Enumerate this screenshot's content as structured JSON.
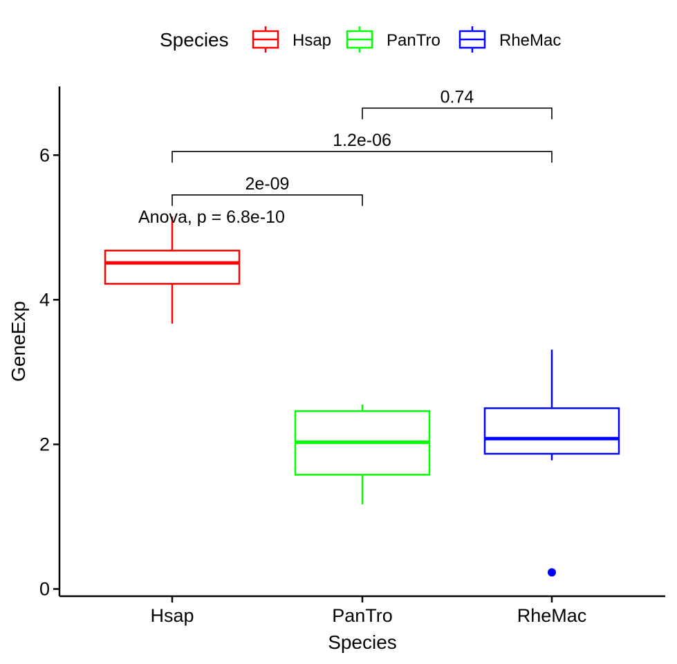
{
  "chart_data": {
    "type": "box",
    "xlabel": "Species",
    "ylabel": "GeneExp",
    "ylim": [
      -0.1,
      6.95
    ],
    "yticks": [
      0,
      2,
      4,
      6
    ],
    "categories": [
      "Hsap",
      "PanTro",
      "RheMac"
    ],
    "legend": {
      "title": "Species",
      "placement": "top",
      "entries": [
        "Hsap",
        "PanTro",
        "RheMac"
      ]
    },
    "series": [
      {
        "name": "Hsap",
        "color": "#ff0000",
        "whisker_low": 3.67,
        "q1": 4.22,
        "median": 4.51,
        "q3": 4.68,
        "whisker_high": 5.15,
        "outliers": []
      },
      {
        "name": "PanTro",
        "color": "#00ff00",
        "whisker_low": 1.17,
        "q1": 1.58,
        "median": 2.03,
        "q3": 2.46,
        "whisker_high": 2.55,
        "outliers": []
      },
      {
        "name": "RheMac",
        "color": "#0000ff",
        "whisker_low": 1.78,
        "q1": 1.87,
        "median": 2.08,
        "q3": 2.5,
        "whisker_high": 3.31,
        "outliers": [
          0.23
        ]
      }
    ],
    "comparisons": [
      {
        "groups": [
          "Hsap",
          "PanTro"
        ],
        "y": 5.45,
        "label": "2e-09"
      },
      {
        "groups": [
          "Hsap",
          "RheMac"
        ],
        "y": 6.05,
        "label": "1.2e-06"
      },
      {
        "groups": [
          "PanTro",
          "RheMac"
        ],
        "y": 6.65,
        "label": "0.74"
      }
    ],
    "global_test": {
      "label": "Anova, p = 6.8e-10",
      "y": 5.15
    }
  }
}
